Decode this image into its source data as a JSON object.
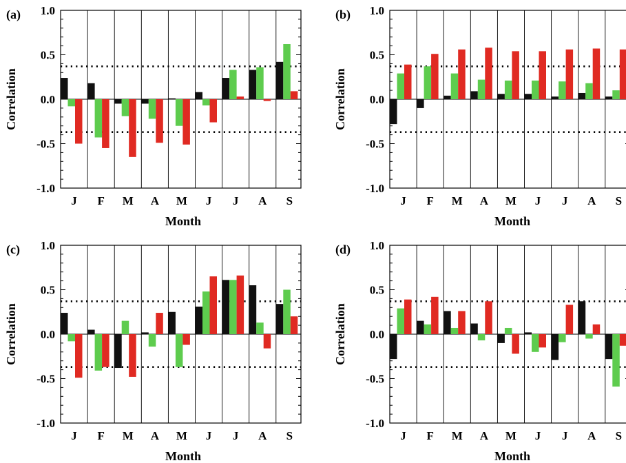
{
  "chart_data": [
    {
      "panel_label": "(a)",
      "type": "bar",
      "categories": [
        "J",
        "F",
        "M",
        "A",
        "M",
        "J",
        "J",
        "A",
        "S"
      ],
      "series": [
        {
          "values": [
            0.24,
            0.18,
            -0.05,
            -0.05,
            0.01,
            0.08,
            0.24,
            0.33,
            0.42
          ]
        },
        {
          "values": [
            -0.08,
            -0.43,
            -0.19,
            -0.22,
            -0.3,
            -0.07,
            0.33,
            0.36,
            0.62
          ]
        },
        {
          "values": [
            -0.5,
            -0.55,
            -0.65,
            -0.49,
            -0.51,
            -0.26,
            0.03,
            -0.02,
            0.09
          ]
        }
      ],
      "xlabel": "Month",
      "ylabel": "Correlation",
      "ylim": [
        -1.0,
        1.0
      ],
      "yticks": [
        "1.0",
        "0.5",
        "0.0",
        "-0.5",
        "-1.0"
      ],
      "significance_lines": [
        0.37,
        -0.37
      ]
    },
    {
      "panel_label": "(b)",
      "type": "bar",
      "categories": [
        "J",
        "F",
        "M",
        "A",
        "M",
        "J",
        "J",
        "A",
        "S"
      ],
      "series": [
        {
          "values": [
            -0.28,
            -0.1,
            0.04,
            0.09,
            0.06,
            0.06,
            0.03,
            0.07,
            0.03
          ]
        },
        {
          "values": [
            0.29,
            0.37,
            0.29,
            0.22,
            0.21,
            0.21,
            0.2,
            0.18,
            0.1
          ]
        },
        {
          "values": [
            0.39,
            0.51,
            0.56,
            0.58,
            0.54,
            0.54,
            0.56,
            0.57,
            0.56
          ]
        }
      ],
      "xlabel": "Month",
      "ylabel": "Correlation",
      "ylim": [
        -1.0,
        1.0
      ],
      "yticks": [
        "1.0",
        "0.5",
        "0.0",
        "-0.5",
        "-1.0"
      ],
      "significance_lines": [
        0.37,
        -0.37
      ]
    },
    {
      "panel_label": "(c)",
      "type": "bar",
      "categories": [
        "J",
        "F",
        "M",
        "A",
        "M",
        "J",
        "J",
        "A",
        "S"
      ],
      "series": [
        {
          "values": [
            0.24,
            0.05,
            -0.38,
            0.02,
            0.25,
            0.31,
            0.61,
            0.55,
            0.34
          ]
        },
        {
          "values": [
            -0.08,
            -0.41,
            0.15,
            -0.14,
            -0.37,
            0.48,
            0.61,
            0.13,
            0.5
          ]
        },
        {
          "values": [
            -0.49,
            -0.37,
            -0.48,
            0.24,
            -0.12,
            0.65,
            0.66,
            -0.16,
            0.2
          ]
        }
      ],
      "xlabel": "Month",
      "ylabel": "Correlation",
      "ylim": [
        -1.0,
        1.0
      ],
      "yticks": [
        "1.0",
        "0.5",
        "0.0",
        "-0.5",
        "-1.0"
      ],
      "significance_lines": [
        0.37,
        -0.37
      ]
    },
    {
      "panel_label": "(d)",
      "type": "bar",
      "categories": [
        "J",
        "F",
        "M",
        "A",
        "M",
        "J",
        "J",
        "A",
        "S"
      ],
      "series": [
        {
          "values": [
            -0.28,
            0.15,
            0.26,
            0.12,
            -0.1,
            0.02,
            -0.29,
            0.37,
            -0.28
          ]
        },
        {
          "values": [
            0.29,
            0.11,
            0.07,
            -0.07,
            0.07,
            -0.2,
            -0.09,
            -0.05,
            -0.59
          ]
        },
        {
          "values": [
            0.39,
            0.42,
            0.26,
            0.37,
            -0.22,
            -0.15,
            0.33,
            0.11,
            -0.13
          ]
        }
      ],
      "xlabel": "Month",
      "ylabel": "Correlation",
      "ylim": [
        -1.0,
        1.0
      ],
      "yticks": [
        "1.0",
        "0.5",
        "0.0",
        "-0.5",
        "-1.0"
      ],
      "significance_lines": [
        0.37,
        -0.37
      ]
    }
  ],
  "colors": {
    "series": [
      "#111111",
      "#5ecc4e",
      "#e02a22"
    ],
    "axis": "#000000"
  }
}
